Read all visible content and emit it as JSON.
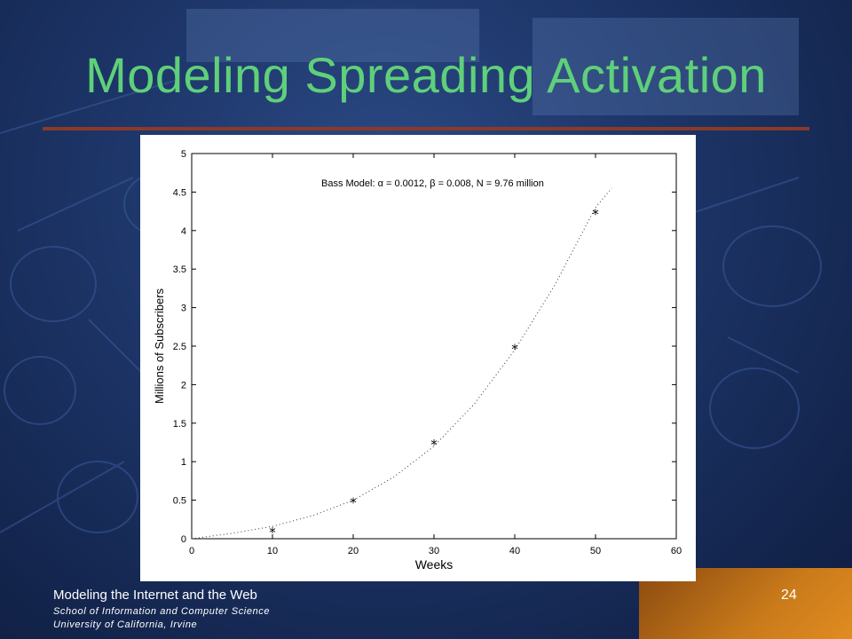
{
  "slide": {
    "title": "Modeling Spreading Activation",
    "footer_line1": "Modeling the Internet and the Web",
    "footer_line2": "School of Information and Computer Science",
    "footer_line3": "University of California, Irvine",
    "page_number": "24"
  },
  "colors": {
    "title": "#5fd07a",
    "rule": "#8a3a28",
    "background": "#1c3466"
  },
  "chart_data": {
    "type": "scatter",
    "annotation": "Bass Model: α = 0.0012, β = 0.008, N = 9.76 million",
    "xlabel": "Weeks",
    "ylabel": "Millions of Subscribers",
    "xlim": [
      0,
      60
    ],
    "ylim": [
      0,
      5
    ],
    "xticks": [
      "0",
      "10",
      "20",
      "30",
      "40",
      "50",
      "60"
    ],
    "yticks": [
      "0",
      "0.5",
      "1",
      "1.5",
      "2",
      "2.5",
      "3",
      "3.5",
      "4",
      "4.5",
      "5"
    ],
    "grid": false,
    "series": [
      {
        "style": "star-markers",
        "x": [
          10,
          20,
          30,
          40,
          50
        ],
        "y": [
          0.09,
          0.48,
          1.23,
          2.47,
          4.22
        ]
      },
      {
        "style": "dotted-line",
        "x": [
          0,
          5,
          10,
          15,
          20,
          25,
          30,
          35,
          40,
          45,
          50,
          52
        ],
        "y": [
          0.0,
          0.07,
          0.16,
          0.3,
          0.5,
          0.8,
          1.2,
          1.75,
          2.45,
          3.3,
          4.3,
          4.55
        ]
      }
    ]
  }
}
